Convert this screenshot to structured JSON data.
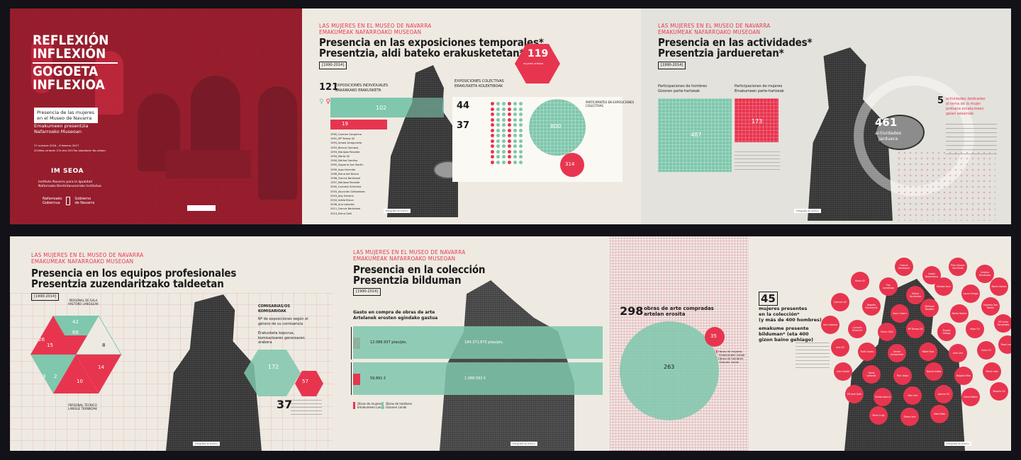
{
  "cover": {
    "title_lines": [
      "REFLEXIÓN",
      "INFLEXIÓN",
      "GOGOETA",
      "INFLEXIOA"
    ],
    "subtitle_es_1": "Presencia de las mujeres",
    "subtitle_es_2": "en el Museo de Navarra",
    "subtitle_eu_1": "Emakumeen presentzia",
    "subtitle_eu_2": "Nafarroako Museoan",
    "dates_1": "27 octubre 2016 - 6 febrero 2017",
    "dates_2": "2016ko urriaren 27a eta 2017ko otsailaren 6a artean",
    "logo": "IM SEOA",
    "institute_1": "Instituto Navarro para la Igualdad",
    "institute_2": "Nafarroako Berdintasunerako Institutua",
    "gov_1": "Nafarroako",
    "gov_2": "Gobernua",
    "gov_3": "Gobierno",
    "gov_4": "de Navarra"
  },
  "exhib": {
    "kicker_1": "LAS MUJERES EN EL MUSEO DE NAVARRA",
    "kicker_2": "EMAKUMEAK NAFARROAKO MUSEOAN",
    "title_1": "Presencia en las exposiciones temporales*",
    "title_2": "Presentzia, aldi bateko erakusketetan*",
    "years": "[1990-2014]",
    "individual_total": "121",
    "individual_label_1": "EXPOSICIONES INDIVIDUALES",
    "individual_label_2": "BAKARKAKO ERAKUSKETA",
    "bar_men": "102",
    "bar_women": "19",
    "collective_label_1": "EXPOSICIONES COLECTIVAS",
    "collective_label_2": "ERAKUSKETA KOLEKTIBOAK",
    "coll_num_1": "44",
    "coll_num_2": "37",
    "big_circle": "800",
    "small_circle": "314",
    "hex_value": "119",
    "hex_text": "mujeres artistas",
    "participants_label": "PARTICIPANTES EN EXPOSICIONES COLECTIVAS",
    "list": [
      "1990_Carmen Gorgorino",
      "1991_Mª Teresa Gil",
      "1993_Amaia Arregurreta",
      "1993_Blanca Gamaza",
      "1993_Marijose Recalde",
      "1994_Marta Gil",
      "1994_Mertxe Sardina",
      "1995_Sagrario San Martín",
      "1995_Inga Hermida",
      "1996_Elena del Rivero",
      "1996_Francis Bartolozzi",
      "1997_Marijose Recalde",
      "2000_Cornelia Schleime",
      "2003_Asunción Goikoetxea",
      "2003_Jing Gimeno",
      "2004_Adela Bravo",
      "2008_Ana Laborda",
      "2011_Francis Bartolozzi",
      "2014_Elena Goñi"
    ],
    "credit": "Fotografía de archivo"
  },
  "act": {
    "kicker_1": "LAS MUJERES EN EL MUSEO DE NAVARRA",
    "kicker_2": "EMAKUMEAK NAFARROAKO MUSEOAN",
    "title_1": "Presencia en las actividades*",
    "title_2": "Presentzia jardueretan*",
    "years": "[1990-2014]",
    "men_label_1": "Participaciones de hombres",
    "men_label_2": "Gizonen parte-hartzeak",
    "women_label_1": "Participaciones de mujeres",
    "women_label_2": "Emakumeen parte-hartzeak",
    "men_value": "487",
    "women_value": "173",
    "total_value": "461",
    "total_label_1": "actividades",
    "total_label_2": "jarduera",
    "side_num": "5",
    "side_text_1": "actividades dedicadas",
    "side_text_2": "al tema de la mujer",
    "side_text_3": "jarduera emakumeen",
    "side_text_4": "gaiari eskainiak",
    "credit": "Fotografía de archivo"
  },
  "team": {
    "kicker_1": "LAS MUJERES EN EL MUSEO DE NAVARRA",
    "kicker_2": "EMAKUMEAK NAFARROAKO MUSEOAN",
    "title_1": "Presencia en los equipos profesionales",
    "title_2": "Presentzia zuzendaritzako taldeetan",
    "years": "[1990-2014]",
    "tri_42": "42",
    "tri_68": "68",
    "tri_26": "26",
    "tri_15": "15",
    "tri_8": "8",
    "tri_3": "3",
    "tri_14": "14",
    "tri_10": "10",
    "tri_2": "2",
    "label_top_1": "PERSONAL DE SALA",
    "label_top_2": "ARETOKO LANGILEAK",
    "label_bottom_1": "PERSONAL TÉCNICO",
    "label_bottom_2": "LANGILE TEKNIKOAK",
    "comm_label_1": "COMISARIAS/OS",
    "comm_label_2": "KOMISARIOAK",
    "comm_text": "Nº de exposiciones según el género de su comisario/a",
    "comm_text_eu": "Erakusketa kopurua, komisarioaren generoaren arabera",
    "hex_big": "172",
    "hex_small": "57",
    "side_num": "37",
    "credit": "Fotografía de archivo"
  },
  "coll": {
    "kicker_1": "LAS MUJERES EN EL MUSEO DE NAVARRA",
    "kicker_2": "EMAKUMEAK NAFARROAKO MUSEOAN",
    "title_1": "Presencia en la colección",
    "title_2": "Presentzia bilduman",
    "years": "[1990-2014]",
    "spend_1": "Gasto en compra de obras de arte",
    "spend_2": "Artelanek erosten egindako gastua",
    "women_pta": "12.086.937 ptas/pts.",
    "men_pta": "184.371.875 ptas/pts.",
    "women_eur": "59.891 €",
    "men_eur": "1.088.582 €",
    "legend_w_1": "Obras de mujeres",
    "legend_w_2": "Emakumeen Lanak",
    "legend_m_1": "Obras de hombres",
    "legend_m_2": "Gizonen Lanak",
    "bought_num": "298",
    "bought_1": "obras de arte compradas",
    "bought_2": "artelan erosita",
    "circle_big": "263",
    "circle_small": "35",
    "credit": "Fotografía de archivo"
  },
  "women": {
    "num": "45",
    "text_1": "mujeres presentes",
    "text_2": "en la colección*",
    "text_3": "(y más de 400 hombres)",
    "text_eu_1": "emakume presente",
    "text_eu_2": "bilduman* (eta 400",
    "text_eu_3": "gizon baino gehiago)",
    "names": [
      "Francis Bartolozzi",
      "Isabel Baquedano",
      "Pilar Salazar Gorriñedo",
      "Cristina Fernández",
      "María Gil",
      "Paz Larrañaga",
      "Mireia Fernández",
      "Maribel Arce",
      "Laura Ortega",
      "María Gómez",
      "Carmen Gil",
      "Begoña Echeverría",
      "Asun Castro",
      "Marijose Recalde",
      "Nerea Ibáñez",
      "Sagrario San Martín",
      "Ana Laborda",
      "Cornelia Schleime",
      "Elena Goñi",
      "Mª Teresa Gil",
      "Ángela Ortega",
      "Idoia Gil",
      "Mª Luisa Fernández",
      "Ana Gil",
      "Ruth Castro",
      "Amaia Arregurreta",
      "Maite Ruiz",
      "Lola Urra",
      "Itziar Gil",
      "Rosa Larrea",
      "Leire Garde",
      "Sonia Laborda",
      "Pilar Aldaz",
      "Nieves Aldaz",
      "Begoña Mira",
      "Marta Sola",
      "Mª José Goñi",
      "Teresa Ayerra",
      "Inés Urra",
      "Josune Gil",
      "Clara Ibáñez",
      "Rosario Gil",
      "Miren Irujo",
      "Elena Lara",
      "Alba Mata"
    ],
    "credit": "Fotografía de archivo"
  }
}
